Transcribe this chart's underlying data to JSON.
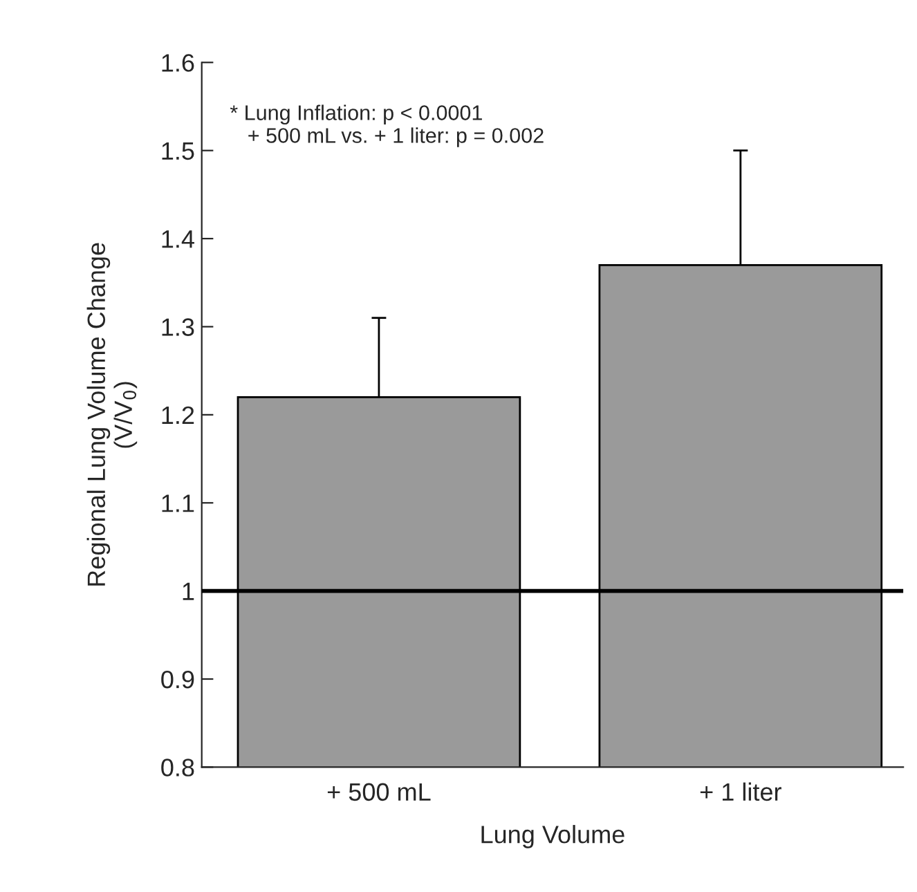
{
  "chart_data": {
    "type": "bar",
    "xlabel": "Lung Volume",
    "ylabel": "Regional Lung Volume Change\n(V/V$_{0}$)",
    "categories": [
      "+ 500 mL",
      "+ 1 liter"
    ],
    "values": [
      1.22,
      1.37
    ],
    "errors": [
      [
        1.22,
        1.31
      ],
      [
        1.37,
        1.5
      ]
    ],
    "color": "#9a9a9a",
    "ylim": [
      0.8,
      1.6
    ],
    "yticks": [
      0.8,
      0.9,
      1,
      1.1,
      1.2,
      1.3,
      1.4,
      1.5,
      1.6
    ],
    "ref_lines": [
      {
        "axis": "y",
        "value": 1,
        "color": "#000000",
        "line_style": "solid"
      }
    ],
    "annotations": [
      "* Lung Inflation: p < 0.0001\n   + 500 mL vs. + 1 liter: p = 0.002"
    ],
    "grid": false
  }
}
